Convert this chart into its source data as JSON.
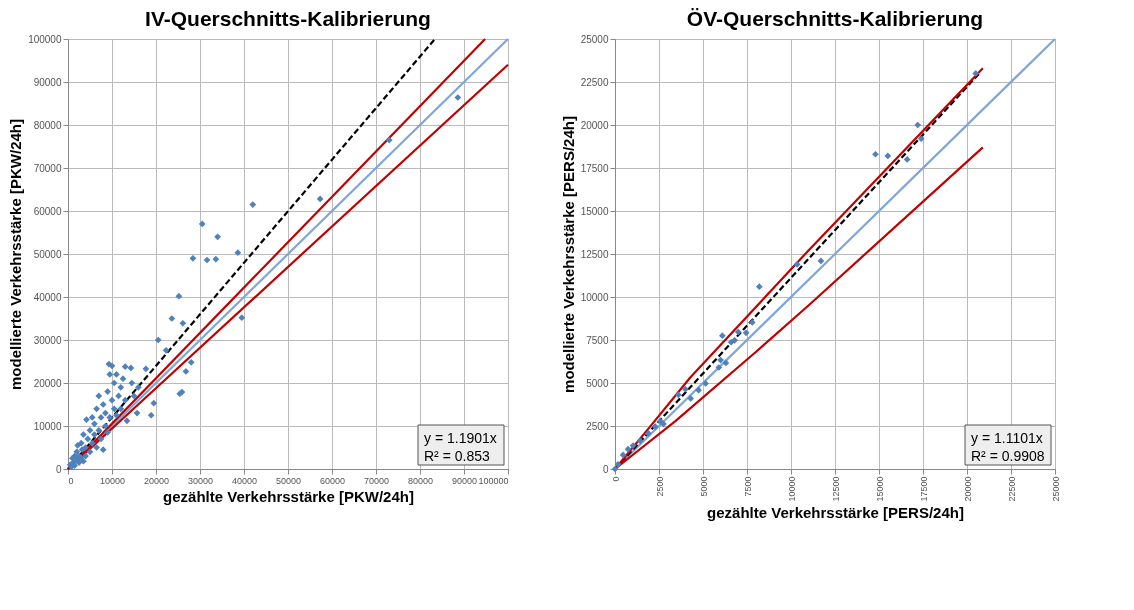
{
  "chart_data": [
    {
      "type": "scatter",
      "title": "IV-Querschnitts-Kalibrierung",
      "xlabel": "gezählte Verkehrsstärke [PKW/24h]",
      "ylabel": "modellierte Verkehrsstärke [PKW/24h]",
      "xlim": [
        0,
        100000
      ],
      "ylim": [
        0,
        100000
      ],
      "xticks": [
        0,
        10000,
        20000,
        30000,
        40000,
        50000,
        60000,
        70000,
        80000,
        90000,
        100000
      ],
      "yticks": [
        0,
        10000,
        20000,
        30000,
        40000,
        50000,
        60000,
        70000,
        80000,
        90000,
        100000
      ],
      "grid": true,
      "annotations": [
        "y = 1.1901x",
        "R² = 0.853"
      ],
      "series": [
        {
          "color": "#4f81bd",
          "marker": "diamond",
          "x": [
            500,
            800,
            1000,
            1200,
            1500,
            1500,
            2000,
            2000,
            2200,
            2500,
            2500,
            3000,
            3000,
            3200,
            3500,
            3500,
            4000,
            4000,
            4200,
            4500,
            5000,
            5000,
            5500,
            5500,
            6000,
            6000,
            6500,
            6500,
            7000,
            7000,
            7500,
            7500,
            8000,
            8000,
            8500,
            8500,
            9000,
            9000,
            9300,
            9500,
            9500,
            10000,
            10000,
            10500,
            10500,
            11000,
            11000,
            11500,
            12000,
            12000,
            12500,
            13000,
            13000,
            13400,
            14300,
            14500,
            15000,
            15700,
            16000,
            17700,
            18900,
            19500,
            20500,
            22300,
            23600,
            25200,
            26100,
            25400,
            25900,
            26800,
            28000,
            28400,
            31600,
            33600,
            38600,
            39500,
            30500,
            34000,
            42000,
            57300,
            73000,
            88600
          ],
          "values": [
            1000,
            500,
            2500,
            1500,
            3000,
            800,
            2000,
            4000,
            5500,
            1500,
            3000,
            6000,
            2500,
            4500,
            8000,
            1800,
            5000,
            3000,
            11500,
            7000,
            9000,
            4000,
            6000,
            12000,
            8000,
            10500,
            14000,
            5000,
            9000,
            17000,
            12000,
            7000,
            4500,
            15000,
            10000,
            13000,
            18000,
            8500,
            24400,
            22000,
            12000,
            16000,
            24000,
            14000,
            20000,
            12500,
            22000,
            17000,
            19000,
            14000,
            21000,
            23800,
            16000,
            11200,
            23500,
            20000,
            17000,
            13000,
            19000,
            23300,
            12500,
            15300,
            30000,
            27600,
            35000,
            40200,
            33900,
            17500,
            17900,
            22700,
            24800,
            49000,
            48600,
            48800,
            50300,
            35200,
            57000,
            54000,
            61500,
            62800,
            76500,
            86400
          ]
        },
        {
          "type": "line",
          "color": "#7fa6d6",
          "line_style": "solid",
          "x": [
            0,
            100000
          ],
          "values": [
            0,
            100000
          ]
        },
        {
          "type": "line",
          "color": "#000000",
          "line_style": "dashed",
          "x": [
            0,
            83400
          ],
          "values": [
            0,
            100000
          ]
        },
        {
          "type": "line",
          "color": "#c00000",
          "line_style": "solid",
          "x": [
            0,
            94800
          ],
          "values": [
            0,
            100000
          ]
        },
        {
          "type": "line",
          "color": "#c00000",
          "line_style": "solid",
          "x": [
            0,
            100000
          ],
          "values": [
            0,
            94000
          ]
        }
      ]
    },
    {
      "type": "scatter",
      "title": "ÖV-Querschnitts-Kalibrierung",
      "xlabel": "gezählte Verkehrsstärke [PERS/24h]",
      "ylabel": "modellierte Verkehrsstärke [PERS/24h]",
      "xlim": [
        0,
        25000
      ],
      "ylim": [
        0,
        25000
      ],
      "xticks": [
        0,
        2500,
        5000,
        7500,
        10000,
        12500,
        15000,
        17500,
        20000,
        22500,
        25000
      ],
      "yticks": [
        0,
        2500,
        5000,
        7500,
        10000,
        12500,
        15000,
        17500,
        20000,
        22500,
        25000
      ],
      "grid": true,
      "annotations": [
        "y = 1.1101x",
        "R² = 0.9908"
      ],
      "series": [
        {
          "color": "#4f81bd",
          "marker": "diamond",
          "x": [
            0,
            170,
            460,
            740,
            1030,
            1430,
            1890,
            2290,
            2570,
            2750,
            3600,
            4000,
            4300,
            4750,
            5150,
            5900,
            6000,
            6300,
            6100,
            6600,
            6800,
            7000,
            7450,
            7800,
            8200,
            10350,
            11700,
            14800,
            15500,
            16600,
            17200,
            17400,
            20500
          ],
          "values": [
            0,
            270,
            820,
            1150,
            1360,
            1640,
            2070,
            2460,
            2780,
            2620,
            4310,
            4640,
            4100,
            4580,
            4970,
            5900,
            6330,
            6170,
            7750,
            7370,
            7480,
            7970,
            7920,
            8520,
            10600,
            11900,
            12100,
            18300,
            18200,
            18000,
            20000,
            19200,
            23000
          ]
        },
        {
          "type": "line",
          "color": "#7fa6d6",
          "line_style": "solid",
          "x": [
            0,
            25000
          ],
          "values": [
            0,
            25000
          ]
        },
        {
          "type": "line",
          "color": "#000000",
          "line_style": "dashed",
          "x": [
            0,
            20700
          ],
          "values": [
            0,
            23000
          ]
        },
        {
          "type": "line",
          "color": "#c00000",
          "line_style": "solid",
          "x": [
            0,
            1900,
            4300,
            10900,
            20900
          ],
          "values": [
            0,
            2350,
            5350,
            12600,
            23300
          ]
        },
        {
          "type": "line",
          "color": "#c00000",
          "line_style": "solid",
          "x": [
            0,
            3430,
            8000,
            11040,
            20900
          ],
          "values": [
            0,
            2780,
            6800,
            9550,
            18700
          ]
        }
      ]
    }
  ]
}
